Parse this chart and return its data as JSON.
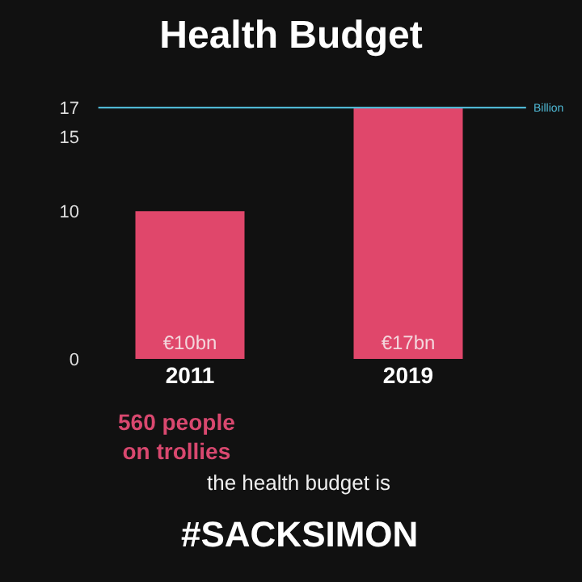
{
  "chart_data": {
    "type": "bar",
    "title": "Health Budget",
    "categories": [
      "2011",
      "2019"
    ],
    "values": [
      10,
      17
    ],
    "color": "#e0476b",
    "value_labels": [
      "€10bn",
      "€17bn"
    ],
    "ylim": [
      0,
      17.5
    ],
    "yticks": [
      0,
      10,
      15,
      17
    ],
    "grid": false,
    "legend": false,
    "ref_lines": [
      {
        "axis": "y",
        "value": 17,
        "label": "Billion",
        "color": "#4fb8d4"
      }
    ],
    "annotations": [
      "560 people on trollies",
      "the health budget is",
      "#SACKSIMON"
    ]
  }
}
